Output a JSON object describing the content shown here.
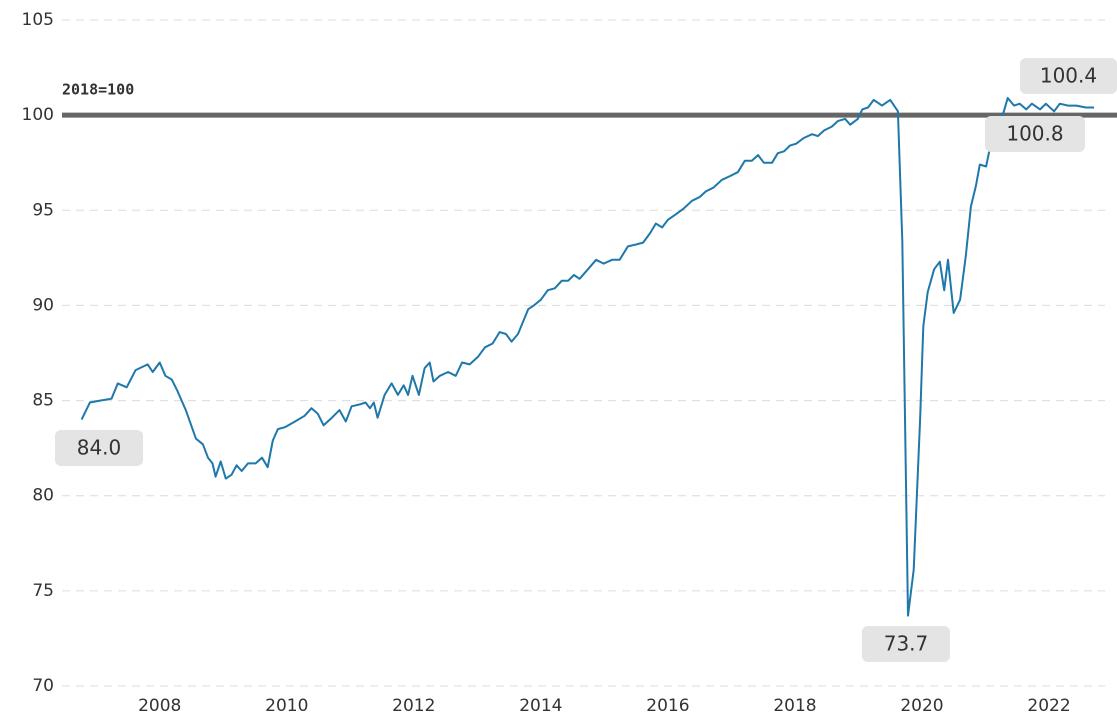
{
  "chart_data": {
    "type": "line",
    "reference_line": {
      "value": 100,
      "label": "2018=100",
      "color": "#666666"
    },
    "annotations": [
      "84.0",
      "73.7",
      "100.8",
      "100.4"
    ],
    "x": [
      2007.27,
      2007.4,
      2007.56,
      2007.74,
      2007.84,
      2007.98,
      2008.12,
      2008.31,
      2008.39,
      2008.5,
      2008.59,
      2008.69,
      2008.78,
      2008.91,
      2009.07,
      2009.18,
      2009.26,
      2009.33,
      2009.38,
      2009.46,
      2009.54,
      2009.63,
      2009.71,
      2009.79,
      2009.89,
      2010.01,
      2010.11,
      2010.2,
      2010.28,
      2010.36,
      2010.47,
      2010.63,
      2010.78,
      2010.89,
      2010.99,
      2011.08,
      2011.21,
      2011.33,
      2011.43,
      2011.52,
      2011.65,
      2011.74,
      2011.81,
      2011.87,
      2011.93,
      2012.04,
      2012.15,
      2012.25,
      2012.34,
      2012.41,
      2012.48,
      2012.58,
      2012.67,
      2012.75,
      2012.81,
      2012.91,
      2013.04,
      2013.16,
      2013.26,
      2013.38,
      2013.51,
      2013.62,
      2013.74,
      2013.85,
      2013.95,
      2014.04,
      2014.14,
      2014.3,
      2014.39,
      2014.5,
      2014.61,
      2014.72,
      2014.83,
      2014.93,
      2015.02,
      2015.11,
      2015.24,
      2015.37,
      2015.49,
      2015.62,
      2015.74,
      2015.87,
      2016.0,
      2016.11,
      2016.22,
      2016.31,
      2016.41,
      2016.5,
      2016.63,
      2016.75,
      2016.88,
      2017.0,
      2017.1,
      2017.22,
      2017.35,
      2017.48,
      2017.6,
      2017.71,
      2017.82,
      2017.92,
      2018.01,
      2018.14,
      2018.23,
      2018.33,
      2018.42,
      2018.52,
      2018.64,
      2018.77,
      2018.86,
      2018.96,
      2019.08,
      2019.18,
      2019.29,
      2019.37,
      2019.49,
      2019.56,
      2019.65,
      2019.74,
      2019.87,
      2020.0,
      2020.04,
      2020.12,
      2020.19,
      2020.28,
      2020.37,
      2020.47,
      2020.52,
      2020.59,
      2020.69,
      2020.78,
      2020.85,
      2020.91,
      2021.0,
      2021.1,
      2021.19,
      2021.27,
      2021.35,
      2021.41,
      2021.51,
      2021.57,
      2021.7,
      2021.79,
      2021.85,
      2021.95,
      2022.04,
      2022.14,
      2022.23,
      2022.36,
      2022.45,
      2022.58,
      2022.67,
      2022.8,
      2022.93,
      2023.08,
      2023.21
    ],
    "series": [
      {
        "color": "#1f78aa",
        "values": [
          84.0,
          84.9,
          85.0,
          85.1,
          85.9,
          85.7,
          86.6,
          86.9,
          86.5,
          87.0,
          86.3,
          86.1,
          85.5,
          84.5,
          83.0,
          82.7,
          82.0,
          81.7,
          81.0,
          81.8,
          80.9,
          81.1,
          81.6,
          81.3,
          81.7,
          81.7,
          82.0,
          81.5,
          82.9,
          83.5,
          83.6,
          83.9,
          84.2,
          84.6,
          84.3,
          83.7,
          84.1,
          84.5,
          83.9,
          84.7,
          84.8,
          84.9,
          84.6,
          84.9,
          84.1,
          85.3,
          85.9,
          85.3,
          85.8,
          85.3,
          86.3,
          85.3,
          86.7,
          87.0,
          86.0,
          86.3,
          86.5,
          86.3,
          87.0,
          86.9,
          87.3,
          87.8,
          88.0,
          88.6,
          88.5,
          88.1,
          88.5,
          89.8,
          90.0,
          90.3,
          90.8,
          90.9,
          91.3,
          91.3,
          91.6,
          91.4,
          91.9,
          92.4,
          92.2,
          92.4,
          92.4,
          93.1,
          93.2,
          93.3,
          93.8,
          94.3,
          94.1,
          94.5,
          94.8,
          95.1,
          95.5,
          95.7,
          96.0,
          96.2,
          96.6,
          96.8,
          97.0,
          97.6,
          97.6,
          97.9,
          97.5,
          97.5,
          98.0,
          98.1,
          98.4,
          98.5,
          98.8,
          99.0,
          98.9,
          99.2,
          99.4,
          99.7,
          99.8,
          99.5,
          99.8,
          100.3,
          100.4,
          100.8,
          100.5,
          100.8,
          100.6,
          100.2,
          93.4,
          73.7,
          76.1,
          84.0,
          88.9,
          90.7,
          91.9,
          92.3,
          90.8,
          92.4,
          89.6,
          90.3,
          92.6,
          95.2,
          96.3,
          97.4,
          97.3,
          98.3,
          99.5,
          100.2,
          100.9,
          100.5,
          100.6,
          100.3,
          100.6,
          100.3,
          100.6,
          100.2,
          100.6,
          100.5,
          100.5,
          100.4,
          100.4
        ]
      }
    ],
    "xlim": [
      2006.93,
      2023.57
    ],
    "xticks": [
      {
        "value": 2008.5,
        "label": "2008"
      },
      {
        "value": 2010.5,
        "label": "2010"
      },
      {
        "value": 2012.5,
        "label": "2012"
      },
      {
        "value": 2014.5,
        "label": "2014"
      },
      {
        "value": 2016.5,
        "label": "2016"
      },
      {
        "value": 2018.5,
        "label": "2018"
      },
      {
        "value": 2020.5,
        "label": "2020"
      },
      {
        "value": 2022.5,
        "label": "2022"
      }
    ],
    "ylim": [
      70,
      105
    ],
    "yticks": [
      70,
      75,
      80,
      85,
      90,
      95,
      100,
      105
    ],
    "grid": true
  }
}
